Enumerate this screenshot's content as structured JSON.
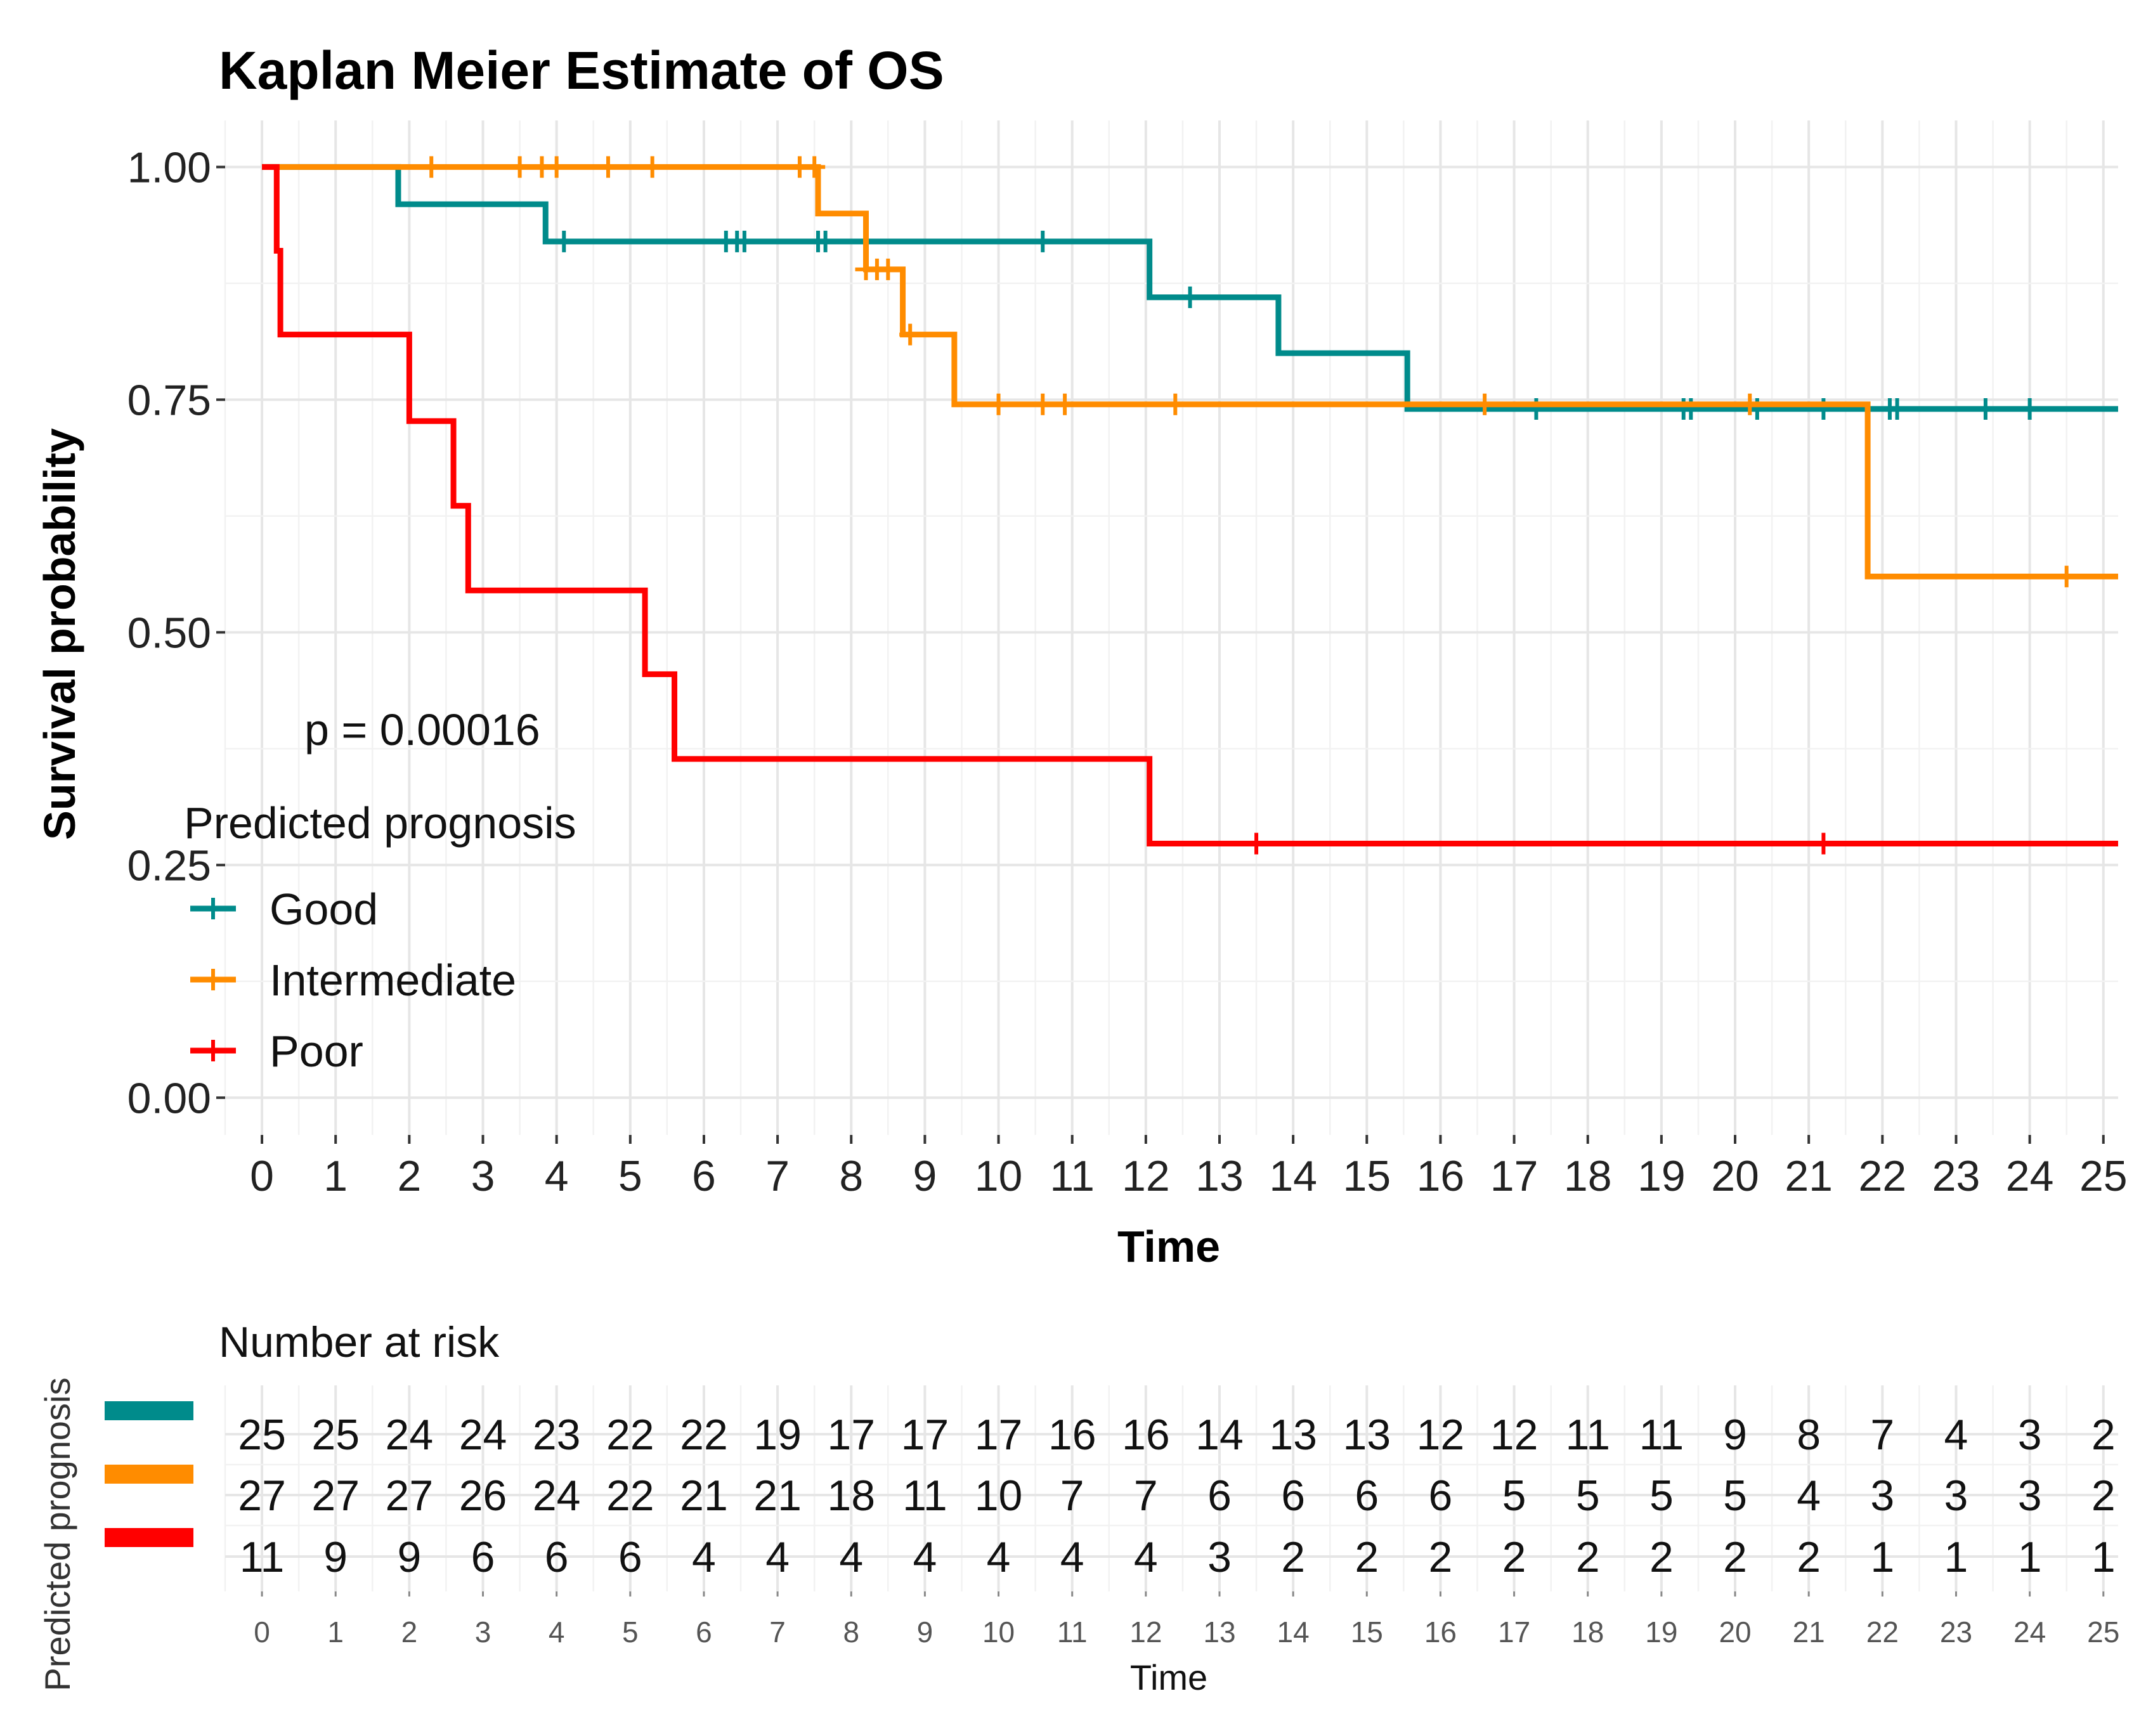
{
  "chart_data": {
    "type": "line",
    "title": "Kaplan Meier Estimate of OS",
    "xlabel": "Time",
    "ylabel": "Survival probability",
    "xlim": [
      -0.5,
      25.2
    ],
    "ylim": [
      -0.04,
      1.05
    ],
    "x_ticks": [
      0,
      1,
      2,
      3,
      4,
      5,
      6,
      7,
      8,
      9,
      10,
      11,
      12,
      13,
      14,
      15,
      16,
      17,
      18,
      19,
      20,
      21,
      22,
      23,
      24,
      25
    ],
    "y_ticks": [
      0,
      0.25,
      0.5,
      0.75,
      1.0
    ],
    "y_tick_labels": [
      "0.00",
      "0.25",
      "0.50",
      "0.75",
      "1.00"
    ],
    "grid": true,
    "p_value_text": "p = 0.00016",
    "legend": {
      "title": "Predicted prognosis",
      "position": "left",
      "entries": [
        "Good",
        "Intermediate",
        "Poor"
      ]
    },
    "series": [
      {
        "name": "Good",
        "color": "#008B8B",
        "steps": [
          [
            0,
            1.0
          ],
          [
            1.85,
            0.96
          ],
          [
            3.85,
            0.92
          ],
          [
            12.05,
            0.86
          ],
          [
            13.8,
            0.8
          ],
          [
            15.55,
            0.74
          ]
        ],
        "end_x": 25.2,
        "censor_times": [
          4.1,
          6.3,
          6.45,
          6.55,
          7.55,
          7.65,
          10.6,
          12.6,
          17.3,
          19.3,
          19.4,
          20.3,
          21.2,
          22.1,
          22.2,
          23.4,
          24.0
        ]
      },
      {
        "name": "Intermediate",
        "color": "#FF8C00",
        "steps": [
          [
            0,
            1.0
          ],
          [
            7.55,
            0.95
          ],
          [
            8.2,
            0.89
          ],
          [
            8.7,
            0.82
          ],
          [
            9.4,
            0.745
          ],
          [
            21.8,
            0.56
          ]
        ],
        "end_x": 25.2,
        "censor_times": [
          2.3,
          3.5,
          3.8,
          4.0,
          4.7,
          5.3,
          7.3,
          7.5,
          8.2,
          8.35,
          8.5,
          8.8,
          10.0,
          10.6,
          10.9,
          12.4,
          16.6,
          20.2,
          24.5
        ]
      },
      {
        "name": "Poor",
        "color": "#FF0000",
        "steps": [
          [
            0,
            1.0
          ],
          [
            0.2,
            0.91
          ],
          [
            0.25,
            0.82
          ],
          [
            2.0,
            0.727
          ],
          [
            2.6,
            0.636
          ],
          [
            2.8,
            0.545
          ],
          [
            5.2,
            0.455
          ],
          [
            5.6,
            0.364
          ],
          [
            12.05,
            0.273
          ]
        ],
        "end_x": 25.2,
        "censor_times": [
          13.5,
          21.2
        ]
      }
    ],
    "risk_table": {
      "title": "Number at risk",
      "xlabel": "Time",
      "ylabel": "Predicted prognosis",
      "times": [
        0,
        1,
        2,
        3,
        4,
        5,
        6,
        7,
        8,
        9,
        10,
        11,
        12,
        13,
        14,
        15,
        16,
        17,
        18,
        19,
        20,
        21,
        22,
        23,
        24,
        25
      ],
      "rows": [
        {
          "name": "Good",
          "color": "#008B8B",
          "values": [
            25,
            25,
            24,
            24,
            23,
            22,
            22,
            19,
            17,
            17,
            17,
            16,
            16,
            14,
            13,
            13,
            12,
            12,
            11,
            11,
            9,
            8,
            7,
            4,
            3,
            2
          ]
        },
        {
          "name": "Intermediate",
          "color": "#FF8C00",
          "values": [
            27,
            27,
            27,
            26,
            24,
            22,
            21,
            21,
            18,
            11,
            10,
            7,
            7,
            6,
            6,
            6,
            6,
            5,
            5,
            5,
            5,
            4,
            3,
            3,
            3,
            2
          ]
        },
        {
          "name": "Poor",
          "color": "#FF0000",
          "values": [
            11,
            9,
            9,
            6,
            6,
            6,
            4,
            4,
            4,
            4,
            4,
            4,
            4,
            3,
            2,
            2,
            2,
            2,
            2,
            2,
            2,
            2,
            1,
            1,
            1,
            1
          ]
        }
      ]
    }
  }
}
